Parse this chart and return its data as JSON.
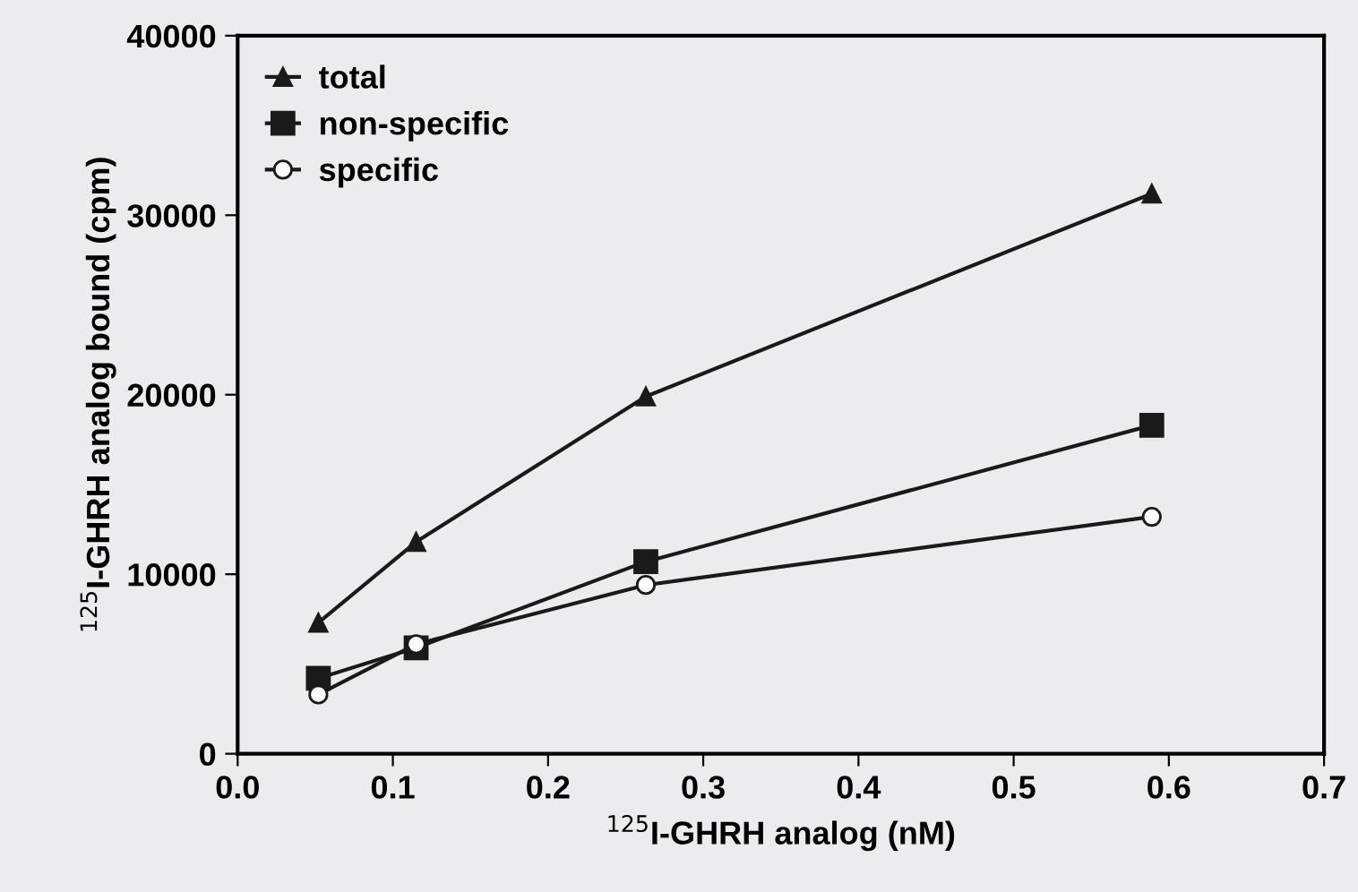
{
  "chart_data": {
    "type": "line",
    "xlabel": "$^{125}$I-GHRH analog (nM)",
    "ylabel": "$^{125}$I-GHRH analog bound (cpm)",
    "xlim": [
      0.0,
      0.7
    ],
    "xticks": [
      {
        "value": 0,
        "label": "0.0"
      },
      0.1,
      0.2,
      0.3,
      0.4,
      0.5,
      0.6,
      0.7
    ],
    "ylim": [
      0,
      40000
    ],
    "yticks": [
      0,
      10000,
      20000,
      30000,
      40000
    ],
    "grid": false,
    "legend": "top left",
    "series": [
      {
        "name": "total",
        "color": "#1a1a1a",
        "marker": "triangle",
        "x": [
          0.052,
          0.115,
          0.263,
          0.589
        ],
        "values": [
          7300,
          11800,
          19900,
          31200
        ]
      },
      {
        "name": "non-specific",
        "color": "#1a1a1a",
        "marker": "square",
        "x": [
          0.052,
          0.115,
          0.263,
          0.589
        ],
        "values": [
          4200,
          5900,
          10700,
          18300
        ]
      },
      {
        "name": "specific",
        "color": "#1a1a1a",
        "marker": "circle",
        "x": [
          0.052,
          0.115,
          0.263,
          0.589
        ],
        "values": [
          3300,
          6100,
          9400,
          13200
        ]
      }
    ]
  }
}
